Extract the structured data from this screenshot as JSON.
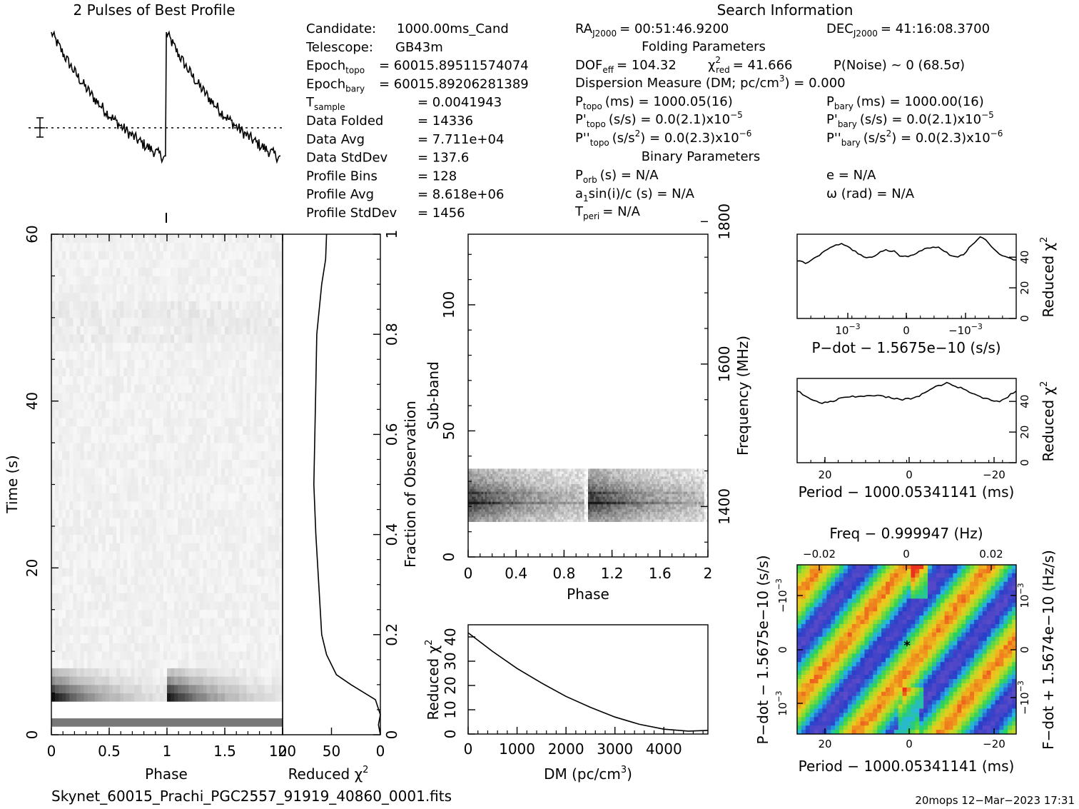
{
  "header": {
    "profile_title": "2 Pulses of Best Profile",
    "search_title": "Search Information",
    "folding_title": "Folding Parameters",
    "binary_title": "Binary Parameters"
  },
  "info_left": [
    {
      "label": "Candidate:",
      "value": "1000.00ms_Cand"
    },
    {
      "label": "Telescope:",
      "value": "GB43m"
    },
    {
      "label": "Epoch",
      "sub": "topo",
      "value": "= 60015.89511574074"
    },
    {
      "label": "Epoch",
      "sub": "bary",
      "value": "= 60015.89206281389"
    },
    {
      "label": "T",
      "sub": "sample",
      "value": "=   0.0041943"
    },
    {
      "label": "Data Folded",
      "value": "=   14336"
    },
    {
      "label": "Data Avg",
      "value": "=   7.711e+04"
    },
    {
      "label": "Data StdDev",
      "value": "=   137.6"
    },
    {
      "label": "Profile Bins",
      "value": "=   128"
    },
    {
      "label": "Profile Avg",
      "value": "=   8.618e+06"
    },
    {
      "label": "Profile StdDev",
      "value": "=   1456"
    }
  ],
  "search_info": {
    "ra": "RA",
    "ra_sub": "J2000",
    "ra_val": "= 00:51:46.9200",
    "dec": "DEC",
    "dec_sub": "J2000",
    "dec_val": "= 41:16:08.3700",
    "dof": "DOF",
    "dof_sub": "eff",
    "dof_val": "= 104.32",
    "chi": "χ",
    "chi_sup": "2",
    "chi_sub": "red",
    "chi_val": "= 41.666",
    "pnoise": "P(Noise) ~ 0   (68.5σ)",
    "dm": "Dispersion Measure (DM; pc/cm",
    "dm_sup": "3",
    "dm_val": ") = 0.000",
    "ptopo": "P",
    "ptopo_sub": "topo",
    "ptopo_val": "(ms) =  1000.05(16)",
    "pbary": "P",
    "pbary_sub": "bary",
    "pbary_val": "(ms) =  1000.00(16)",
    "pdtopo": "P'",
    "pdtopo_sub": "topo",
    "pdtopo_val": "(s/s) = 0.0(2.1)x10",
    "pdtopo_exp": "−5",
    "pdbary": "P'",
    "pdbary_sub": "bary",
    "pdbary_val": "(s/s) = 0.0(2.1)x10",
    "pdbary_exp": "−5",
    "pddtopo": "P''",
    "pddtopo_sub": "topo",
    "pddtopo_val": "(s/s",
    "pddtopo_val2": ") = 0.0(2.3)x10",
    "pddtopo_exp": "−6",
    "pddbary": "P''",
    "pddbary_sub": "bary",
    "pddbary_val": "(s/s",
    "pddbary_val2": ") = 0.0(2.3)x10",
    "pddbary_exp": "−6",
    "porb": "P",
    "porb_sub": "orb",
    "porb_val": "(s) = N/A",
    "e_val": "e = N/A",
    "a1": "a",
    "a1_sub": "1",
    "a1_val": "sin(i)/c (s) = N/A",
    "omega_val": "ω (rad) = N/A",
    "tperi": "T",
    "tperi_sub": "peri",
    "tperi_val": "= N/A"
  },
  "footer": {
    "filename": "Skynet_60015_Prachi_PGC2557_91919_40860_0001.fits",
    "stamp": "20mops 12−Mar−2023 17:31"
  },
  "colors": {
    "ink": "#000000",
    "heatmap_low": "#5050d0",
    "heatmap_mid": "#30d060",
    "heatmap_high": "#e03020"
  },
  "chart_data": [
    {
      "type": "line",
      "id": "profile",
      "title": "2 Pulses of Best Profile",
      "xlim": [
        0,
        2
      ],
      "description": "Two identical pulses: sharp rise at phase 0 and 1, exponential-like decay",
      "peak_phases": [
        0.0,
        1.0
      ]
    },
    {
      "type": "heatmap",
      "id": "time_phase",
      "xlabel": "Phase",
      "ylabel": "Time (s)",
      "x_ticks": [
        "0",
        "0.5",
        "1",
        "1.5",
        "2"
      ],
      "y_ticks": [
        "0",
        "20",
        "40",
        "60"
      ],
      "xlim": [
        0,
        2
      ],
      "ylim": [
        0,
        60
      ]
    },
    {
      "type": "line",
      "id": "redchi_vs_time",
      "xlabel": "Reduced χ",
      "xlabel_sup": "2",
      "ylabel": "Fraction of Observation",
      "x_ticks": [
        "100",
        "50",
        "0"
      ],
      "y_ticks": [
        "0",
        "0.2",
        "0.4",
        "0.6",
        "0.8",
        "1"
      ],
      "xlim": [
        100,
        0
      ],
      "ylim": [
        0,
        1
      ],
      "points": [
        [
          0,
          0
        ],
        [
          2,
          0.02
        ],
        [
          0,
          0.04
        ],
        [
          5,
          0.07
        ],
        [
          30,
          0.1
        ],
        [
          45,
          0.12
        ],
        [
          55,
          0.16
        ],
        [
          60,
          0.2
        ],
        [
          63,
          0.3
        ],
        [
          66,
          0.4
        ],
        [
          68,
          0.5
        ],
        [
          67,
          0.6
        ],
        [
          66,
          0.7
        ],
        [
          65,
          0.8
        ],
        [
          60,
          0.9
        ],
        [
          56,
          0.95
        ],
        [
          55,
          1.0
        ]
      ]
    },
    {
      "type": "heatmap",
      "id": "subband_phase",
      "xlabel": "Phase",
      "ylabel": "Sub-band",
      "y2label": "Frequency (MHz)",
      "x_ticks": [
        "0",
        "0.4",
        "0.8",
        "1.2",
        "1.6",
        "2"
      ],
      "y_ticks": [
        "0",
        "50",
        "100"
      ],
      "y2_ticks": [
        "1400",
        "1600",
        "1800"
      ],
      "xlim": [
        0,
        2
      ],
      "ylim": [
        0,
        128
      ],
      "filled_subbands": [
        14,
        35
      ]
    },
    {
      "type": "line",
      "id": "redchi_vs_dm",
      "xlabel": "DM (pc/cm",
      "xlabel_sup": "3",
      "ylabel": "Reduced χ",
      "ylabel_sup": "2",
      "x_ticks": [
        "0",
        "1000",
        "2000",
        "3000",
        "4000"
      ],
      "y_ticks": [
        "0",
        "10",
        "20",
        "30",
        "40"
      ],
      "xlim": [
        0,
        4900
      ],
      "ylim": [
        0,
        45
      ],
      "points": [
        [
          0,
          41.7
        ],
        [
          500,
          34
        ],
        [
          1000,
          27
        ],
        [
          1500,
          21
        ],
        [
          2000,
          15.5
        ],
        [
          2500,
          11
        ],
        [
          3000,
          7
        ],
        [
          3500,
          4
        ],
        [
          4000,
          2
        ],
        [
          4500,
          1.2
        ],
        [
          4900,
          1.5
        ]
      ]
    },
    {
      "type": "line",
      "id": "redchi_vs_pdot",
      "xlabel": "P−dot − 1.5675e−10 (s/s)",
      "ylabel": "Reduced χ",
      "ylabel_sup": "2",
      "x_ticks": [
        "10",
        "0",
        "−10"
      ],
      "x_tick_exp": "−3",
      "y_ticks": [
        "0",
        "20",
        "40"
      ],
      "ylim": [
        0,
        55
      ],
      "values": [
        38,
        36,
        40,
        43,
        47,
        49,
        46,
        42,
        39,
        41,
        45,
        44,
        40,
        41,
        44,
        46,
        47,
        43,
        40,
        42,
        48,
        54,
        48,
        42,
        40,
        38
      ]
    },
    {
      "type": "line",
      "id": "redchi_vs_period",
      "xlabel": "Period − 1000.05341141 (ms)",
      "ylabel": "Reduced χ",
      "ylabel_sup": "2",
      "x_ticks": [
        "20",
        "0",
        "−20"
      ],
      "y_ticks": [
        "0",
        "20",
        "40"
      ],
      "ylim": [
        0,
        55
      ],
      "values": [
        47,
        43,
        40,
        39,
        40,
        42,
        43,
        43,
        44,
        44,
        43,
        42,
        41,
        42,
        44,
        47,
        50,
        52,
        50,
        48,
        45,
        43,
        41,
        40,
        43,
        47
      ]
    },
    {
      "type": "heatmap",
      "id": "pdot_period",
      "xlabel": "Period − 1000.05341141 (ms)",
      "x2label": "Freq − 0.999947 (Hz)",
      "ylabel": "P−dot − 1.5675e−10 (s/s)",
      "y2label": "F−dot + 1.5674e−10 (Hz/s)",
      "x_ticks": [
        "20",
        "0",
        "−20"
      ],
      "x2_ticks": [
        "−0.02",
        "0",
        "0.02"
      ],
      "y_ticks": [
        "10",
        "0",
        "−10"
      ],
      "y_tick_exp": "−3",
      "y2_ticks": [
        "10",
        "0",
        "−10"
      ],
      "y2_tick_exp": "−3"
    }
  ]
}
